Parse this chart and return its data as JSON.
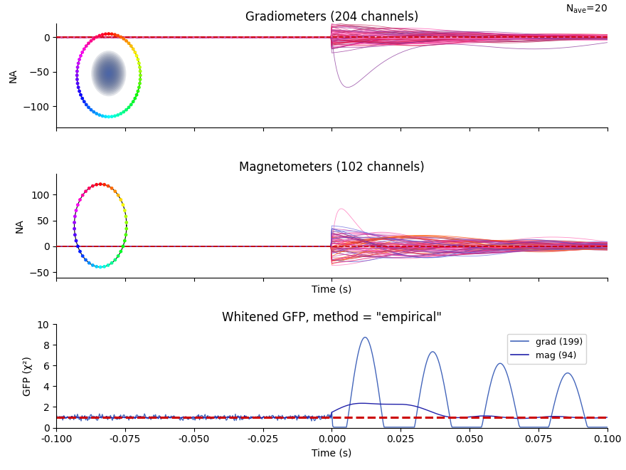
{
  "title_grad": "Gradiometers (204 channels)",
  "title_mag": "Magnetometers (102 channels)",
  "title_gfp": "Whitened GFP, method = \"empirical\"",
  "nave_text": "N_ave=20",
  "ylabel_na": "NA",
  "ylabel_gfp": "GFP (χ²)",
  "xlabel_time": "Time (s)",
  "xlim": [
    -0.1,
    0.1
  ],
  "grad_ylim": [
    -130,
    20
  ],
  "mag_ylim": [
    -60,
    140
  ],
  "gfp_ylim": [
    0,
    10
  ],
  "grad_yticks": [
    0,
    -50,
    -100
  ],
  "mag_yticks": [
    -50,
    0,
    50,
    100
  ],
  "gfp_yticks": [
    0,
    2,
    4,
    6,
    8,
    10
  ],
  "xticks": [
    -0.1,
    -0.075,
    -0.05,
    -0.025,
    0.0,
    0.025,
    0.05,
    0.075,
    0.1
  ],
  "legend_grad": "grad (199)",
  "legend_mag": "mag (94)",
  "dashed_line_color": "#cc0000",
  "gfp_grad_color": "#4466bb",
  "gfp_mag_color": "#2222aa",
  "background_color": "#ffffff"
}
